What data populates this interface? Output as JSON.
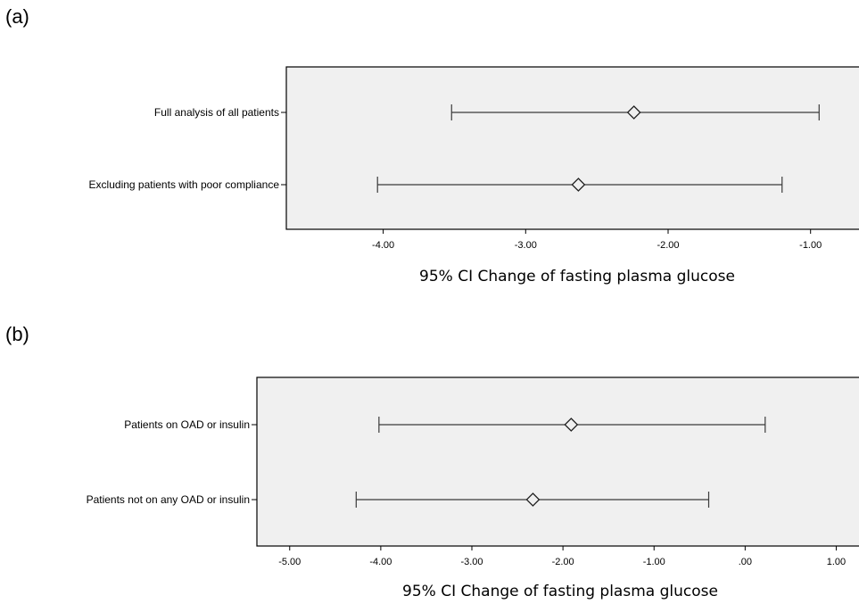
{
  "panels": [
    {
      "label": "(a)"
    },
    {
      "label": "(b)"
    }
  ],
  "chart_data": [
    {
      "type": "errorbar",
      "panel": "(a)",
      "categories": [
        "Full analysis of all patients",
        "Excluding patients with poor compliance"
      ],
      "point": [
        -2.24,
        -2.63
      ],
      "lower": [
        -3.52,
        -4.04
      ],
      "upper": [
        -0.94,
        -1.2
      ],
      "xlabel": "95% CI Change of fasting plasma glucose",
      "xticks": [
        -4.0,
        -3.0,
        -2.0,
        -1.0
      ],
      "xtick_labels": [
        "-4.00",
        "-3.00",
        "-2.00",
        "-1.00"
      ],
      "xlim": [
        -4.68,
        -0.66
      ],
      "grid": false,
      "marker": "diamond",
      "background": "#f0f0f0"
    },
    {
      "type": "errorbar",
      "panel": "(b)",
      "categories": [
        "Patients on OAD or insulin",
        "Patients not on any OAD or insulin"
      ],
      "point": [
        -1.91,
        -2.33
      ],
      "lower": [
        -4.02,
        -4.27
      ],
      "upper": [
        0.22,
        -0.4
      ],
      "xlabel": "95% CI Change of fasting plasma glucose",
      "xticks": [
        -5.0,
        -4.0,
        -3.0,
        -2.0,
        -1.0,
        0.0,
        1.0
      ],
      "xtick_labels": [
        "-5.00",
        "-4.00",
        "-3.00",
        "-2.00",
        "-1.00",
        ".00",
        "1.00"
      ],
      "xlim": [
        -5.36,
        1.25
      ],
      "grid": false,
      "marker": "diamond",
      "background": "#f0f0f0"
    }
  ]
}
